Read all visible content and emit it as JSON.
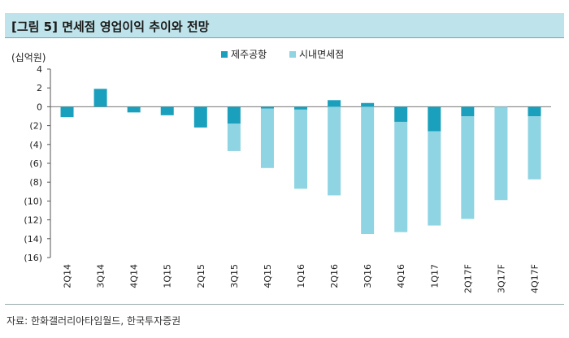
{
  "header": {
    "title": "[그림 5] 면세점 영업이익 추이와 전망"
  },
  "footer": {
    "source": "자료: 한화갤러리아타임월드, 한국투자증권"
  },
  "colors": {
    "series1": "#1aa0bc",
    "series2": "#8fd4e2",
    "title_bg": "#bfe3ea"
  },
  "chart_data": {
    "type": "bar",
    "unit": "(십억원)",
    "categories": [
      "2Q14",
      "3Q14",
      "4Q14",
      "1Q15",
      "2Q15",
      "3Q15",
      "4Q15",
      "1Q16",
      "2Q16",
      "3Q16",
      "4Q16",
      "1Q17",
      "2Q17F",
      "3Q17F",
      "4Q17F"
    ],
    "series": [
      {
        "name": "제주공항",
        "color": "#1aa0bc",
        "values": [
          -1.1,
          1.9,
          -0.6,
          -0.9,
          -2.2,
          -1.8,
          -0.2,
          -0.3,
          0.7,
          0.4,
          -1.6,
          -2.6,
          -1.0,
          0.0,
          -1.0
        ]
      },
      {
        "name": "시내면세점",
        "color": "#8fd4e2",
        "values": [
          0,
          0,
          0,
          0,
          0,
          -2.9,
          -6.3,
          -8.4,
          -9.4,
          -13.5,
          -11.7,
          -10.0,
          -10.9,
          -9.9,
          -6.7
        ]
      }
    ],
    "ylim": [
      -16,
      4
    ],
    "yticks": [
      "4",
      "2",
      "0",
      "(2)",
      "(4)",
      "(6)",
      "(8)",
      "(10)",
      "(12)",
      "(14)",
      "(16)"
    ],
    "stacked": true,
    "legend_position": "top"
  }
}
